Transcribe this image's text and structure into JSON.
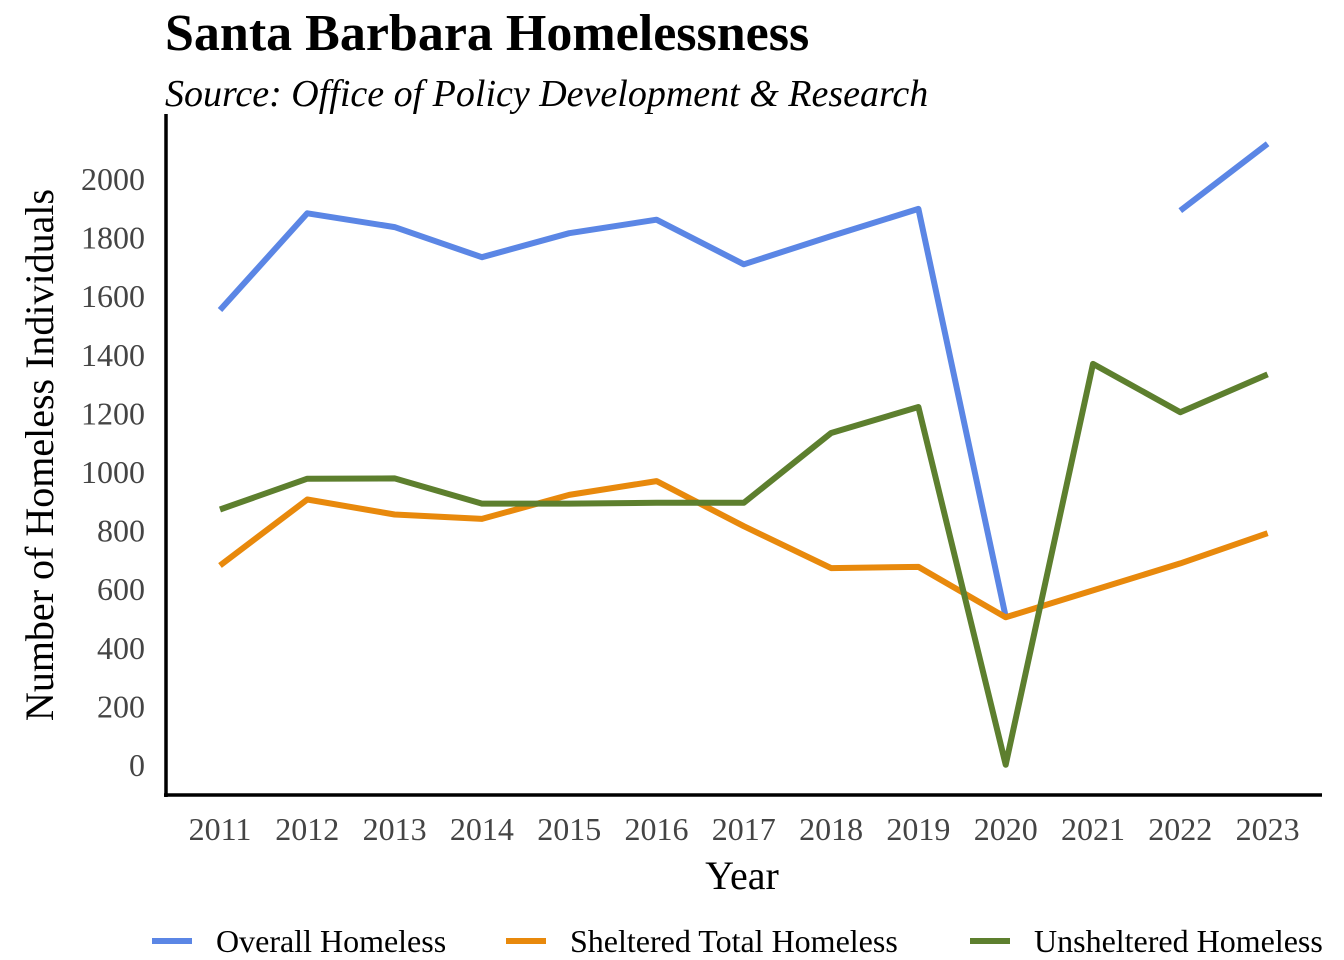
{
  "chart_data": {
    "type": "line",
    "title": "Santa Barbara Homelessness",
    "subtitle": "Source: Office of Policy Development & Research",
    "xlabel": "Year",
    "ylabel": "Number of Homeless Individuals",
    "categories": [
      "2011",
      "2012",
      "2013",
      "2014",
      "2015",
      "2016",
      "2017",
      "2018",
      "2019",
      "2020",
      "2021",
      "2022",
      "2023"
    ],
    "ylim": [
      -100,
      2250
    ],
    "yticks": [
      0,
      200,
      400,
      600,
      800,
      1000,
      1200,
      1400,
      1600,
      1800,
      2000
    ],
    "grid": false,
    "legend_position": "bottom",
    "series": [
      {
        "name": "Overall Homeless",
        "color": "#5b86e5",
        "values": [
          1553,
          1883,
          1836,
          1733,
          1815,
          1861,
          1709,
          1805,
          1898,
          506,
          null,
          1892,
          2120
        ]
      },
      {
        "name": "Sheltered Total Homeless",
        "color": "#e8890c",
        "values": [
          681,
          906,
          855,
          840,
          922,
          969,
          815,
          672,
          676,
          504,
          596,
          688,
          791
        ]
      },
      {
        "name": "Unsheltered Homeless",
        "color": "#5d7f2e",
        "values": [
          872,
          977,
          978,
          892,
          892,
          895,
          895,
          1133,
          1222,
          1,
          1369,
          1204,
          1333
        ]
      }
    ]
  }
}
